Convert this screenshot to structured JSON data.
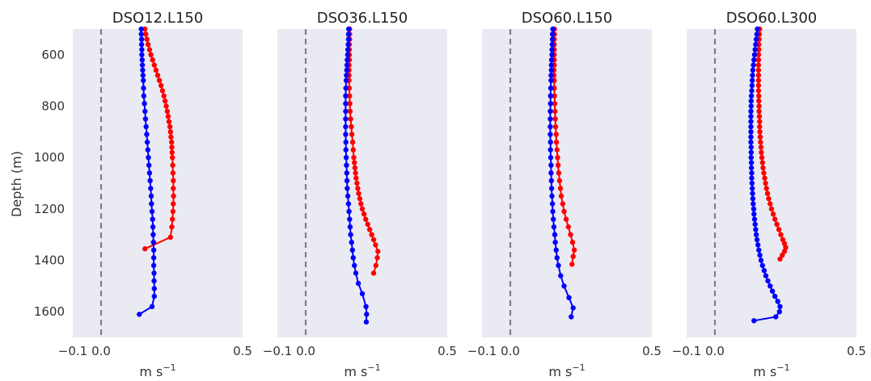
{
  "chart_data": {
    "type": "line",
    "ylabel": "Depth (m)",
    "xlabel_base": "m s",
    "xlabel_exp": "−1",
    "ylim": [
      1700,
      500
    ],
    "xlim": [
      -0.1,
      0.5
    ],
    "yticks": [
      600,
      800,
      1000,
      1200,
      1400,
      1600
    ],
    "xticks": [
      {
        "value": -0.1,
        "label": "−0.1"
      },
      {
        "value": 0.0,
        "label": "0.0"
      },
      {
        "value": 0.5,
        "label": "0.5"
      }
    ],
    "reference_line_x": 0.0,
    "colors": {
      "series_a": "#ff0000",
      "series_b": "#0000ff",
      "panel_bg": "#eaeaf2",
      "reference": "#808080"
    },
    "panels": [
      {
        "title": "DSO12.L150",
        "series": [
          {
            "color": "red",
            "depth": [
              500,
              520,
              540,
              560,
              580,
              600,
              620,
              640,
              660,
              680,
              700,
              720,
              740,
              760,
              780,
              800,
              820,
              840,
              860,
              880,
              900,
              920,
              940,
              960,
              980,
              1000,
              1030,
              1060,
              1090,
              1120,
              1150,
              1180,
              1210,
              1240,
              1270,
              1310,
              1355
            ],
            "values": [
              0.155,
              0.158,
              0.162,
              0.166,
              0.171,
              0.176,
              0.182,
              0.188,
              0.194,
              0.2,
              0.206,
              0.212,
              0.217,
              0.222,
              0.226,
              0.23,
              0.234,
              0.237,
              0.24,
              0.243,
              0.245,
              0.247,
              0.249,
              0.25,
              0.251,
              0.252,
              0.253,
              0.254,
              0.255,
              0.255,
              0.256,
              0.255,
              0.254,
              0.252,
              0.25,
              0.245,
              0.155
            ]
          },
          {
            "color": "blue",
            "depth": [
              500,
              520,
              540,
              560,
              580,
              600,
              620,
              640,
              660,
              680,
              700,
              730,
              760,
              790,
              820,
              850,
              880,
              910,
              940,
              970,
              1000,
              1030,
              1060,
              1090,
              1120,
              1150,
              1180,
              1210,
              1240,
              1270,
              1300,
              1330,
              1360,
              1390,
              1420,
              1450,
              1480,
              1510,
              1540,
              1580,
              1610
            ],
            "values": [
              0.142,
              0.142,
              0.143,
              0.143,
              0.144,
              0.144,
              0.145,
              0.146,
              0.147,
              0.148,
              0.149,
              0.15,
              0.151,
              0.153,
              0.155,
              0.157,
              0.159,
              0.161,
              0.163,
              0.165,
              0.167,
              0.169,
              0.171,
              0.173,
              0.175,
              0.177,
              0.178,
              0.18,
              0.182,
              0.183,
              0.184,
              0.185,
              0.186,
              0.186,
              0.186,
              0.187,
              0.187,
              0.188,
              0.188,
              0.18,
              0.135
            ]
          }
        ]
      },
      {
        "title": "DSO36.L150",
        "series": [
          {
            "color": "red",
            "depth": [
              500,
              520,
              540,
              560,
              580,
              600,
              620,
              640,
              660,
              680,
              700,
              730,
              760,
              790,
              820,
              850,
              880,
              910,
              940,
              970,
              1000,
              1020,
              1040,
              1060,
              1080,
              1100,
              1120,
              1140,
              1160,
              1180,
              1200,
              1220,
              1240,
              1260,
              1280,
              1300,
              1320,
              1340,
              1365,
              1390,
              1420,
              1450
            ],
            "values": [
              0.155,
              0.155,
              0.155,
              0.154,
              0.154,
              0.154,
              0.154,
              0.153,
              0.153,
              0.153,
              0.153,
              0.154,
              0.155,
              0.156,
              0.157,
              0.159,
              0.161,
              0.163,
              0.166,
              0.168,
              0.17,
              0.172,
              0.174,
              0.176,
              0.178,
              0.181,
              0.184,
              0.187,
              0.191,
              0.195,
              0.2,
              0.206,
              0.212,
              0.219,
              0.226,
              0.233,
              0.24,
              0.247,
              0.255,
              0.253,
              0.248,
              0.24
            ]
          },
          {
            "color": "blue",
            "depth": [
              500,
              520,
              540,
              560,
              580,
              600,
              620,
              640,
              660,
              680,
              700,
              730,
              760,
              790,
              820,
              850,
              880,
              910,
              940,
              970,
              1000,
              1030,
              1060,
              1090,
              1120,
              1150,
              1180,
              1210,
              1240,
              1270,
              1300,
              1330,
              1360,
              1390,
              1420,
              1450,
              1490,
              1530,
              1580,
              1610,
              1640
            ],
            "values": [
              0.152,
              0.151,
              0.151,
              0.15,
              0.149,
              0.148,
              0.147,
              0.146,
              0.145,
              0.144,
              0.143,
              0.142,
              0.141,
              0.141,
              0.141,
              0.141,
              0.141,
              0.141,
              0.142,
              0.142,
              0.143,
              0.144,
              0.145,
              0.146,
              0.147,
              0.149,
              0.151,
              0.153,
              0.155,
              0.157,
              0.159,
              0.162,
              0.165,
              0.168,
              0.172,
              0.177,
              0.186,
              0.2,
              0.213,
              0.215,
              0.214
            ]
          }
        ]
      },
      {
        "title": "DSO60.L150",
        "series": [
          {
            "color": "red",
            "depth": [
              500,
              520,
              540,
              560,
              580,
              600,
              620,
              640,
              660,
              680,
              700,
              730,
              760,
              790,
              820,
              850,
              880,
              910,
              940,
              970,
              1000,
              1030,
              1060,
              1090,
              1120,
              1150,
              1180,
              1210,
              1240,
              1270,
              1300,
              1330,
              1360,
              1385,
              1415
            ],
            "values": [
              0.156,
              0.156,
              0.155,
              0.155,
              0.155,
              0.155,
              0.155,
              0.155,
              0.154,
              0.154,
              0.155,
              0.155,
              0.156,
              0.157,
              0.158,
              0.159,
              0.16,
              0.162,
              0.163,
              0.165,
              0.167,
              0.169,
              0.171,
              0.174,
              0.177,
              0.18,
              0.185,
              0.19,
              0.197,
              0.205,
              0.213,
              0.22,
              0.226,
              0.222,
              0.218
            ]
          },
          {
            "color": "blue",
            "depth": [
              500,
              520,
              540,
              560,
              580,
              600,
              620,
              640,
              660,
              680,
              700,
              730,
              760,
              790,
              820,
              850,
              880,
              910,
              940,
              970,
              1000,
              1030,
              1060,
              1090,
              1120,
              1150,
              1180,
              1210,
              1240,
              1270,
              1300,
              1330,
              1360,
              1390,
              1420,
              1460,
              1500,
              1545,
              1585,
              1620
            ],
            "values": [
              0.15,
              0.149,
              0.149,
              0.148,
              0.147,
              0.147,
              0.146,
              0.145,
              0.145,
              0.144,
              0.144,
              0.143,
              0.142,
              0.142,
              0.141,
              0.141,
              0.141,
              0.141,
              0.142,
              0.142,
              0.143,
              0.144,
              0.144,
              0.145,
              0.146,
              0.147,
              0.149,
              0.15,
              0.152,
              0.154,
              0.157,
              0.159,
              0.162,
              0.165,
              0.17,
              0.178,
              0.19,
              0.207,
              0.222,
              0.215
            ]
          }
        ]
      },
      {
        "title": "DSO60.L300",
        "series": [
          {
            "color": "red",
            "depth": [
              500,
              520,
              540,
              560,
              580,
              600,
              620,
              640,
              660,
              680,
              700,
              720,
              740,
              760,
              780,
              800,
              820,
              840,
              860,
              880,
              900,
              920,
              940,
              960,
              980,
              1000,
              1020,
              1040,
              1060,
              1080,
              1100,
              1120,
              1140,
              1160,
              1180,
              1200,
              1220,
              1240,
              1260,
              1280,
              1300,
              1320,
              1335,
              1350,
              1365,
              1380,
              1395
            ],
            "values": [
              0.158,
              0.157,
              0.156,
              0.155,
              0.155,
              0.154,
              0.154,
              0.154,
              0.154,
              0.154,
              0.154,
              0.154,
              0.154,
              0.155,
              0.155,
              0.156,
              0.156,
              0.157,
              0.158,
              0.158,
              0.159,
              0.16,
              0.161,
              0.163,
              0.164,
              0.166,
              0.168,
              0.17,
              0.173,
              0.176,
              0.179,
              0.182,
              0.186,
              0.19,
              0.195,
              0.2,
              0.206,
              0.212,
              0.219,
              0.226,
              0.233,
              0.24,
              0.246,
              0.25,
              0.246,
              0.238,
              0.23
            ]
          },
          {
            "color": "blue",
            "depth": [
              500,
              520,
              540,
              560,
              580,
              600,
              620,
              640,
              660,
              680,
              700,
              720,
              740,
              760,
              780,
              800,
              820,
              840,
              860,
              880,
              900,
              920,
              940,
              960,
              980,
              1000,
              1020,
              1040,
              1060,
              1080,
              1100,
              1120,
              1140,
              1160,
              1180,
              1200,
              1220,
              1240,
              1260,
              1280,
              1300,
              1320,
              1340,
              1360,
              1380,
              1400,
              1420,
              1440,
              1460,
              1480,
              1500,
              1520,
              1540,
              1560,
              1580,
              1600,
              1620,
              1635
            ],
            "values": [
              0.15,
              0.148,
              0.146,
              0.144,
              0.142,
              0.14,
              0.138,
              0.136,
              0.134,
              0.133,
              0.132,
              0.131,
              0.13,
              0.129,
              0.128,
              0.128,
              0.127,
              0.127,
              0.127,
              0.127,
              0.127,
              0.127,
              0.127,
              0.128,
              0.128,
              0.128,
              0.129,
              0.129,
              0.13,
              0.13,
              0.131,
              0.132,
              0.133,
              0.134,
              0.135,
              0.137,
              0.138,
              0.14,
              0.142,
              0.144,
              0.146,
              0.149,
              0.152,
              0.155,
              0.159,
              0.163,
              0.168,
              0.174,
              0.18,
              0.187,
              0.195,
              0.203,
              0.212,
              0.222,
              0.23,
              0.228,
              0.215,
              0.138
            ]
          }
        ]
      }
    ]
  }
}
